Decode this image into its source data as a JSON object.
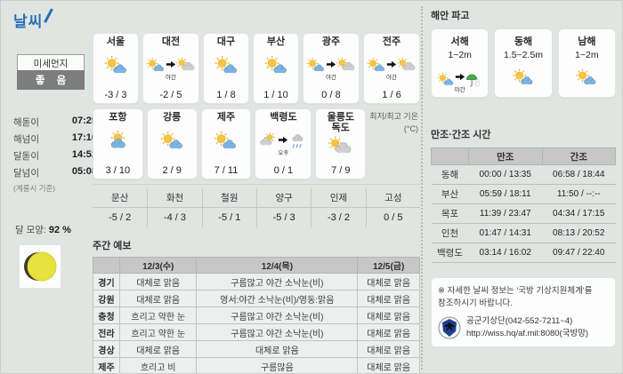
{
  "page": {
    "title": "날씨"
  },
  "colors": {
    "accent_blue": "#2a6db8",
    "badge_gray": "#7d7d7d",
    "table_header_gray": "#c7c7c7",
    "sun_yellow": "#f6c73c",
    "cloud_blue": "#7db3e0",
    "cloud_gray": "#cfcfcf"
  },
  "sidebar": {
    "dust_label": "미세먼지",
    "dust_status": "좋 음",
    "times": [
      {
        "label": "해돋이",
        "value": "07:25"
      },
      {
        "label": "해넘이",
        "value": "17:16"
      },
      {
        "label": "달돋이",
        "value": "14:52"
      },
      {
        "label": "달넘이",
        "value": "05:08"
      }
    ],
    "times_note": "(계룡시 기준)",
    "moon_label": "달 모양:",
    "moon_value": "92 %",
    "moon_icon": "waxing-gibbous-moon"
  },
  "cities": {
    "row1": [
      {
        "name": "서울",
        "temp": "-3 / 3",
        "icon": "sun-cloud"
      },
      {
        "name": "대전",
        "temp": "-2 / 5",
        "icon": "sun-cloud",
        "transition": {
          "label": "야간",
          "icon": "sun-gray-cloud"
        }
      },
      {
        "name": "대구",
        "temp": "1 / 8",
        "icon": "sun-cloud"
      },
      {
        "name": "부산",
        "temp": "1 / 10",
        "icon": "sun-cloud"
      },
      {
        "name": "광주",
        "temp": "0 / 8",
        "icon": "sun-cloud",
        "transition": {
          "label": "야간",
          "icon": "sun-gray-cloud"
        }
      },
      {
        "name": "전주",
        "temp": "1 / 6",
        "icon": "sun-cloud",
        "transition": {
          "label": "야간",
          "icon": "sun-gray-cloud"
        }
      }
    ],
    "row2": [
      {
        "name": "포항",
        "temp": "3 / 10",
        "icon": "sun-behind-cloud"
      },
      {
        "name": "강릉",
        "temp": "2 / 9",
        "icon": "sun-cloud"
      },
      {
        "name": "제주",
        "temp": "7 / 11",
        "icon": "sun-cloud"
      },
      {
        "name": "백령도",
        "temp": "0 / 1",
        "icon": "gray-cloud-sun",
        "transition": {
          "label": "오후",
          "icon": "rain-cloud"
        }
      },
      {
        "name": "울릉도\n독도",
        "temp": "7 / 9",
        "icon": "sun-gray-cloud"
      }
    ],
    "temp_note_line1": "최저/최고 기온",
    "temp_note_line2": "(°C)"
  },
  "border_towns": [
    {
      "name": "문산",
      "temp": "-5 / 2"
    },
    {
      "name": "화천",
      "temp": "-4 / 3"
    },
    {
      "name": "철원",
      "temp": "-5 / 1"
    },
    {
      "name": "양구",
      "temp": "-5 / 3"
    },
    {
      "name": "인제",
      "temp": "-3 / 2"
    },
    {
      "name": "고성",
      "temp": "0 / 5"
    }
  ],
  "weekly": {
    "title": "주간 예보",
    "columns": [
      "12/3(수)",
      "12/4(목)",
      "12/5(금)"
    ],
    "rows": [
      {
        "region": "경기",
        "values": [
          "대체로 맑음",
          "구름많고 야간 소낙눈(비)",
          "대체로 맑음"
        ]
      },
      {
        "region": "강원",
        "values": [
          "대체로 맑음",
          "영서:야간 소낙눈(비)/영동:맑음",
          "대체로 맑음"
        ]
      },
      {
        "region": "충청",
        "values": [
          "흐리고 약한 눈",
          "구름많고 야간 소낙눈(비)",
          "대체로 맑음"
        ]
      },
      {
        "region": "전라",
        "values": [
          "흐리고 약한 눈",
          "구름많고 야간 소낙눈(비)",
          "대체로 맑음"
        ]
      },
      {
        "region": "경상",
        "values": [
          "대체로 맑음",
          "대체로 맑음",
          "대체로 맑음"
        ]
      },
      {
        "region": "제주",
        "values": [
          "흐리고 비",
          "구름많음",
          "대체로 맑음"
        ]
      }
    ]
  },
  "coast": {
    "title": "해안 파고",
    "items": [
      {
        "name": "서해",
        "height": "1~2m",
        "icon": "sun-cloud",
        "transition": {
          "label": "야간",
          "icon": "umbrella-rain"
        }
      },
      {
        "name": "동해",
        "height": "1.5~2.5m",
        "icon": "sun-cloud"
      },
      {
        "name": "남해",
        "height": "1~2m",
        "icon": "sun-cloud"
      }
    ]
  },
  "tide": {
    "title": "만조·간조 시간",
    "columns": [
      "만조",
      "간조"
    ],
    "rows": [
      {
        "name": "동해",
        "high": "00:00 / 13:35",
        "low": "06:58 / 18:44"
      },
      {
        "name": "부산",
        "high": "05:59 / 18:11",
        "low": "11:50 / --:--"
      },
      {
        "name": "목포",
        "high": "11:39 / 23:47",
        "low": "04:34 / 17:15"
      },
      {
        "name": "인천",
        "high": "01:47 / 14:31",
        "low": "08:13 / 20:52"
      },
      {
        "name": "백령도",
        "high": "03:14 / 16:02",
        "low": "09:47 / 22:40"
      }
    ]
  },
  "notice": {
    "line1": "※ 자세한 날씨 정보는 '국방 기상지원체계'를",
    "line2": "참조하시기 바랍니다.",
    "org": "공군기상단(042-552-7211~4)",
    "url": "http://wiss.hq/af.mil:8080(국방망)"
  }
}
